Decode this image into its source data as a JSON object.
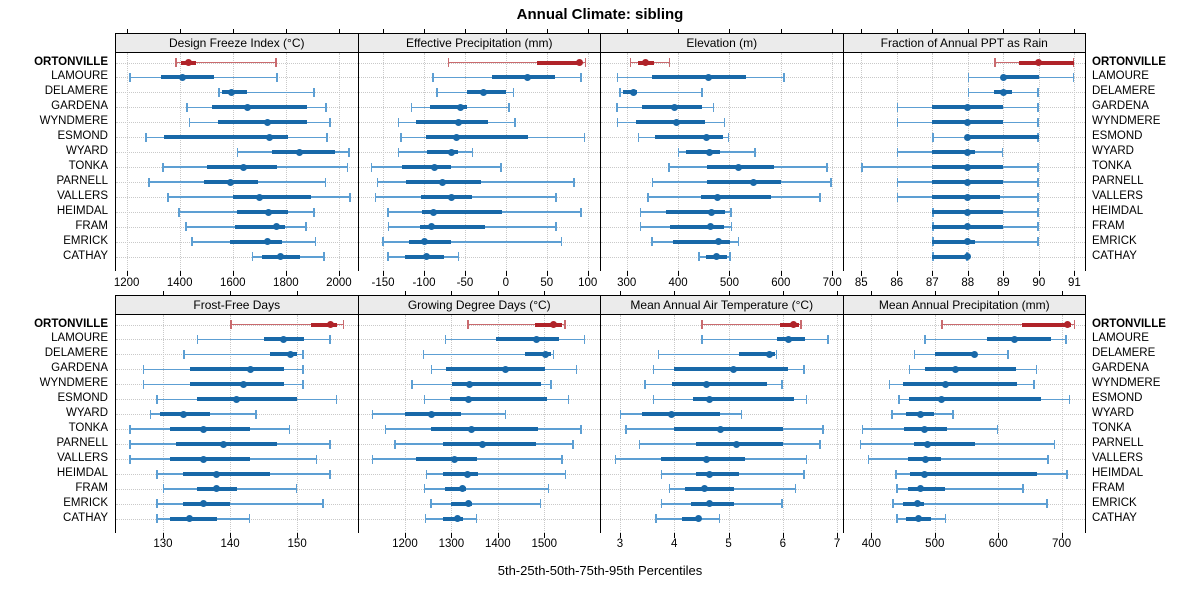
{
  "title": "Annual Climate: sibling",
  "xlabel": "5th-25th-50th-75th-95th Percentiles",
  "percentile_labels": [
    "5th",
    "25th",
    "50th",
    "75th",
    "95th"
  ],
  "stations": [
    "ORTONVILLE",
    "LAMOURE",
    "DELAMERE",
    "GARDENA",
    "WYNDMERE",
    "ESMOND",
    "WYARD",
    "TONKA",
    "PARNELL",
    "VALLERS",
    "HEIMDAL",
    "FRAM",
    "EMRICK",
    "CATHAY"
  ],
  "highlight_station": "ORTONVILLE",
  "colors": {
    "highlight": "#b02329",
    "highlight_light": "#c96a6e",
    "series": "#1868a8",
    "series_light": "#5d9fd3",
    "strip_bg": "#ebebeb",
    "grid": "#c9c9c9",
    "border": "#000000"
  },
  "chart_data": {
    "type": "dotplot-percentiles",
    "note": "each station row: [p5,p25,p50,p75,p95]",
    "panels": [
      {
        "title": "Design Freeze Index (°C)",
        "grid_row": 0,
        "grid_col": 0,
        "xlim": [
          1160,
          2070
        ],
        "ticks": [
          1200,
          1400,
          1600,
          1800,
          2000
        ],
        "values": [
          [
            1383,
            1404,
            1432,
            1460,
            1766
          ],
          [
            1210,
            1329,
            1410,
            1529,
            1769
          ],
          [
            1545,
            1560,
            1594,
            1654,
            1908
          ],
          [
            1425,
            1522,
            1656,
            1879,
            1954
          ],
          [
            1435,
            1545,
            1730,
            1878,
            1970
          ],
          [
            1270,
            1340,
            1740,
            1810,
            1958
          ],
          [
            1615,
            1746,
            1852,
            1984,
            2040
          ],
          [
            1334,
            1503,
            1640,
            1765,
            2035
          ],
          [
            1281,
            1490,
            1590,
            1696,
            1953
          ],
          [
            1353,
            1602,
            1702,
            1896,
            2045
          ],
          [
            1394,
            1615,
            1734,
            1809,
            1909
          ],
          [
            1421,
            1609,
            1765,
            1796,
            1878
          ],
          [
            1444,
            1590,
            1730,
            1784,
            1915
          ],
          [
            1671,
            1709,
            1780,
            1852,
            1946
          ]
        ]
      },
      {
        "title": "Effective Precipitation (mm)",
        "grid_row": 0,
        "grid_col": 1,
        "xlim": [
          -180,
          115
        ],
        "ticks": [
          -150,
          -100,
          -50,
          0,
          50,
          100
        ],
        "values": [
          [
            -71,
            38,
            90,
            93,
            98
          ],
          [
            -90,
            -17,
            27,
            60,
            93
          ],
          [
            -85,
            -48,
            -27,
            0,
            10
          ],
          [
            -116,
            -93,
            -56,
            -47,
            5
          ],
          [
            -132,
            -110,
            -58,
            -22,
            12
          ],
          [
            -129,
            -98,
            -60,
            27,
            97
          ],
          [
            -132,
            -96,
            -67,
            -59,
            -40
          ],
          [
            -165,
            -127,
            -87,
            -67,
            -5
          ],
          [
            -158,
            -122,
            -78,
            -30,
            84
          ],
          [
            -160,
            -104,
            -66,
            -41,
            62
          ],
          [
            -145,
            -103,
            -88,
            -5,
            93
          ],
          [
            -144,
            -105,
            -91,
            -25,
            62
          ],
          [
            -151,
            -118,
            -99,
            -67,
            69
          ],
          [
            -145,
            -123,
            -97,
            -75,
            -57
          ]
        ]
      },
      {
        "title": "Elevation (m)",
        "grid_row": 0,
        "grid_col": 2,
        "xlim": [
          250,
          720
        ],
        "ticks": [
          300,
          400,
          500,
          600,
          700
        ],
        "values": [
          [
            306,
            322,
            337,
            353,
            385
          ],
          [
            281,
            350,
            460,
            533,
            608
          ],
          [
            286,
            293,
            313,
            320,
            448
          ],
          [
            280,
            329,
            394,
            446,
            470
          ],
          [
            281,
            319,
            396,
            452,
            492
          ],
          [
            322,
            355,
            455,
            488,
            500
          ],
          [
            399,
            416,
            462,
            481,
            551
          ],
          [
            381,
            457,
            517,
            587,
            691
          ],
          [
            349,
            457,
            546,
            600,
            699
          ],
          [
            340,
            444,
            477,
            581,
            678
          ],
          [
            325,
            377,
            465,
            492,
            504
          ],
          [
            325,
            385,
            464,
            490,
            505
          ],
          [
            348,
            390,
            478,
            502,
            519
          ],
          [
            439,
            455,
            475,
            495,
            503
          ]
        ]
      },
      {
        "title": "Fraction of Annual PPT as Rain",
        "grid_row": 0,
        "grid_col": 3,
        "xlim": [
          84.5,
          91.3
        ],
        "ticks": [
          85,
          86,
          87,
          88,
          89,
          90,
          91
        ],
        "values": [
          [
            88.75,
            89.45,
            90,
            91,
            91
          ],
          [
            88,
            89,
            89,
            90,
            91
          ],
          [
            88,
            88.75,
            89,
            89.25,
            90
          ],
          [
            86,
            87,
            88,
            89,
            90
          ],
          [
            86,
            87,
            88,
            89,
            90
          ],
          [
            87,
            88,
            88,
            90,
            90
          ],
          [
            86,
            87,
            88,
            88.2,
            89
          ],
          [
            85,
            87,
            88,
            89,
            90
          ],
          [
            86,
            87,
            88,
            89,
            90
          ],
          [
            86,
            87,
            88,
            88.9,
            90
          ],
          [
            87,
            87,
            88,
            89,
            90
          ],
          [
            87,
            87,
            88,
            89,
            90
          ],
          [
            87,
            87,
            88,
            88.2,
            90
          ],
          [
            87,
            87,
            88,
            88,
            88
          ]
        ]
      },
      {
        "title": "Frost-Free Days",
        "grid_row": 1,
        "grid_col": 0,
        "xlim": [
          123,
          159
        ],
        "ticks": [
          130,
          140,
          150
        ],
        "values": [
          [
            140,
            152,
            155,
            156,
            157
          ],
          [
            135,
            145,
            148,
            151,
            155
          ],
          [
            133,
            146,
            149,
            150,
            151
          ],
          [
            127,
            134,
            143,
            148,
            151
          ],
          [
            127,
            134,
            142,
            148,
            151
          ],
          [
            129,
            135,
            141,
            150,
            156
          ],
          [
            128,
            129.5,
            133,
            137,
            144
          ],
          [
            125,
            131,
            136,
            143,
            149
          ],
          [
            125,
            132,
            139,
            147,
            155
          ],
          [
            125,
            131,
            136,
            143,
            153
          ],
          [
            129,
            133,
            138,
            146,
            155
          ],
          [
            130,
            135,
            138,
            141,
            150
          ],
          [
            129,
            133,
            136,
            140,
            154
          ],
          [
            129,
            131,
            134,
            138,
            143
          ]
        ]
      },
      {
        "title": "Growing Degree Days (°C)",
        "grid_row": 1,
        "grid_col": 1,
        "xlim": [
          1100,
          1620
        ],
        "ticks": [
          1200,
          1300,
          1400,
          1500
        ],
        "values": [
          [
            1334,
            1480,
            1520,
            1538,
            1546
          ],
          [
            1286,
            1397,
            1484,
            1531,
            1588
          ],
          [
            1238,
            1458,
            1503,
            1514,
            1521
          ],
          [
            1256,
            1288,
            1416,
            1502,
            1571
          ],
          [
            1214,
            1302,
            1338,
            1493,
            1516
          ],
          [
            1240,
            1297,
            1336,
            1506,
            1554
          ],
          [
            1129,
            1200,
            1257,
            1320,
            1418
          ],
          [
            1157,
            1257,
            1343,
            1486,
            1581
          ],
          [
            1177,
            1283,
            1366,
            1483,
            1564
          ],
          [
            1129,
            1224,
            1307,
            1356,
            1540
          ],
          [
            1245,
            1281,
            1334,
            1357,
            1547
          ],
          [
            1240,
            1286,
            1325,
            1331,
            1511
          ],
          [
            1254,
            1299,
            1336,
            1344,
            1493
          ],
          [
            1243,
            1281,
            1314,
            1324,
            1356
          ]
        ]
      },
      {
        "title": "Mean Annual Air Temperature (°C)",
        "grid_row": 1,
        "grid_col": 2,
        "xlim": [
          2.65,
          7.1
        ],
        "ticks": [
          3,
          4,
          5,
          6,
          7
        ],
        "values": [
          [
            4.5,
            5.95,
            6.2,
            6.3,
            6.35
          ],
          [
            4.5,
            5.9,
            6.1,
            6.4,
            6.85
          ],
          [
            3.7,
            5.2,
            5.75,
            5.85,
            5.9
          ],
          [
            3.6,
            4.0,
            5.1,
            6.1,
            6.4
          ],
          [
            3.45,
            3.95,
            4.6,
            5.7,
            6.0
          ],
          [
            3.6,
            4.35,
            4.65,
            6.2,
            6.45
          ],
          [
            3.0,
            3.4,
            3.95,
            4.85,
            5.25
          ],
          [
            3.1,
            4.0,
            4.85,
            6.0,
            6.75
          ],
          [
            3.35,
            4.4,
            5.15,
            6.0,
            6.7
          ],
          [
            2.9,
            3.75,
            4.6,
            5.3,
            6.45
          ],
          [
            3.75,
            4.4,
            4.65,
            5.2,
            6.4
          ],
          [
            3.9,
            4.2,
            4.55,
            5.1,
            6.25
          ],
          [
            3.75,
            4.3,
            4.65,
            5.1,
            6.0
          ],
          [
            3.65,
            4.15,
            4.45,
            4.5,
            4.85
          ]
        ]
      },
      {
        "title": "Mean Annual Precipitation (mm)",
        "grid_row": 1,
        "grid_col": 3,
        "xlim": [
          356,
          737
        ],
        "ticks": [
          400,
          500,
          600,
          700
        ],
        "values": [
          [
            510,
            637,
            709,
            715,
            722
          ],
          [
            483,
            583,
            625,
            683,
            708
          ],
          [
            467,
            500,
            562,
            567,
            617
          ],
          [
            459,
            484,
            532,
            628,
            662
          ],
          [
            427,
            450,
            517,
            630,
            658
          ],
          [
            442,
            459,
            511,
            667,
            714
          ],
          [
            431,
            454,
            478,
            499,
            530
          ],
          [
            385,
            452,
            484,
            520,
            600
          ],
          [
            382,
            468,
            489,
            563,
            690
          ],
          [
            394,
            457,
            485,
            510,
            680
          ],
          [
            438,
            461,
            484,
            662,
            710
          ],
          [
            439,
            458,
            478,
            516,
            640
          ],
          [
            433,
            450,
            473,
            483,
            678
          ],
          [
            439,
            454,
            475,
            494,
            518
          ]
        ]
      }
    ]
  }
}
